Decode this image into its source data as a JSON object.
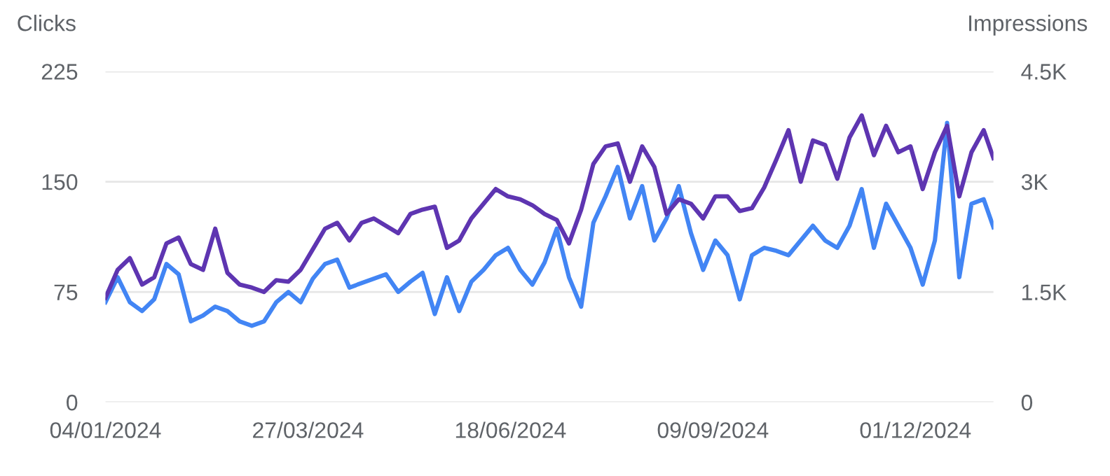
{
  "chart_data": {
    "type": "line",
    "ylabel": "Clicks",
    "y2label": "Impressions",
    "x": [
      "2024-01-04",
      "2024-01-09",
      "2024-01-14",
      "2024-01-19",
      "2024-01-24",
      "2024-01-29",
      "2024-02-03",
      "2024-02-08",
      "2024-02-13",
      "2024-02-18",
      "2024-02-23",
      "2024-02-28",
      "2024-03-04",
      "2024-03-09",
      "2024-03-14",
      "2024-03-19",
      "2024-03-24",
      "2024-03-29",
      "2024-04-03",
      "2024-04-08",
      "2024-04-13",
      "2024-04-18",
      "2024-04-23",
      "2024-04-28",
      "2024-05-03",
      "2024-05-08",
      "2024-05-13",
      "2024-05-18",
      "2024-05-23",
      "2024-05-28",
      "2024-06-02",
      "2024-06-07",
      "2024-06-12",
      "2024-06-17",
      "2024-06-22",
      "2024-06-27",
      "2024-07-02",
      "2024-07-07",
      "2024-07-12",
      "2024-07-17",
      "2024-07-22",
      "2024-07-27",
      "2024-08-01",
      "2024-08-06",
      "2024-08-11",
      "2024-08-16",
      "2024-08-21",
      "2024-08-26",
      "2024-08-31",
      "2024-09-05",
      "2024-09-10",
      "2024-09-15",
      "2024-09-20",
      "2024-09-25",
      "2024-09-30",
      "2024-10-05",
      "2024-10-10",
      "2024-10-15",
      "2024-10-20",
      "2024-10-25",
      "2024-10-30",
      "2024-11-04",
      "2024-11-09",
      "2024-11-14",
      "2024-11-19",
      "2024-11-24",
      "2024-11-29",
      "2024-12-04",
      "2024-12-09",
      "2024-12-14",
      "2024-12-19",
      "2024-12-24",
      "2024-12-29",
      "2025-01-02"
    ],
    "series": [
      {
        "color": "#5e35b1",
        "axis": "y2",
        "values": [
          1420,
          1800,
          1960,
          1600,
          1700,
          2160,
          2240,
          1880,
          1800,
          2360,
          1760,
          1600,
          1560,
          1500,
          1660,
          1640,
          1800,
          2080,
          2360,
          2440,
          2200,
          2440,
          2500,
          2400,
          2300,
          2560,
          2620,
          2660,
          2100,
          2200,
          2500,
          2700,
          2900,
          2800,
          2760,
          2680,
          2560,
          2480,
          2160,
          2620,
          3240,
          3480,
          3520,
          3000,
          3480,
          3200,
          2560,
          2760,
          2700,
          2500,
          2800,
          2800,
          2600,
          2640,
          2920,
          3300,
          3700,
          3000,
          3560,
          3500,
          3040,
          3600,
          3900,
          3360,
          3760,
          3400,
          3480,
          2900,
          3400,
          3760,
          2800,
          3400,
          3700,
          3320
        ]
      },
      {
        "color": "#4285f4",
        "axis": "y",
        "values": [
          68,
          85,
          68,
          62,
          70,
          94,
          87,
          55,
          59,
          65,
          62,
          55,
          52,
          55,
          68,
          75,
          68,
          84,
          94,
          97,
          78,
          81,
          84,
          87,
          75,
          82,
          88,
          60,
          85,
          62,
          82,
          90,
          100,
          105,
          90,
          80,
          95,
          118,
          85,
          65,
          122,
          140,
          160,
          125,
          147,
          110,
          125,
          147,
          115,
          90,
          110,
          100,
          70,
          100,
          105,
          103,
          100,
          110,
          120,
          110,
          105,
          120,
          145,
          105,
          135,
          120,
          105,
          80,
          110,
          190,
          85,
          135,
          138,
          119
        ]
      }
    ],
    "xlim": [
      "2024-01-04",
      "2025-01-02"
    ],
    "xticks": [
      {
        "value": "2024-01-04",
        "label": "04/01/2024"
      },
      {
        "value": "2024-03-27",
        "label": "27/03/2024"
      },
      {
        "value": "2024-06-18",
        "label": "18/06/2024"
      },
      {
        "value": "2024-09-09",
        "label": "09/09/2024"
      },
      {
        "value": "2024-12-01",
        "label": "01/12/2024"
      }
    ],
    "ylim": [
      0,
      225
    ],
    "yticks": [
      0,
      75,
      150,
      225
    ],
    "y2lim": [
      0,
      4500
    ],
    "y2ticks": [
      {
        "value": 0,
        "label": "0"
      },
      {
        "value": 1500,
        "label": "1.5K"
      },
      {
        "value": 3000,
        "label": "3K"
      },
      {
        "value": 4500,
        "label": "4.5K"
      }
    ],
    "grid": "y",
    "line_style": "solid",
    "marker": "none"
  }
}
